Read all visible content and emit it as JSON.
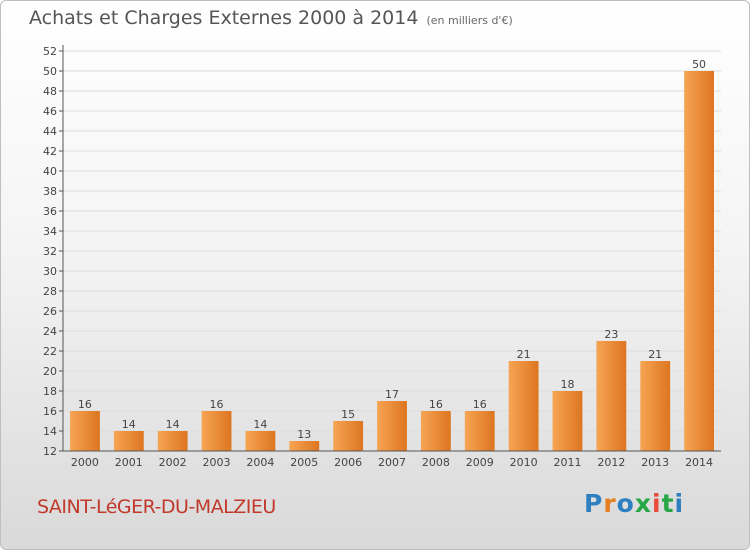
{
  "header": {
    "title": "Achats et Charges Externes 2000 à 2014",
    "unit": "(en milliers d'€)"
  },
  "footer": {
    "place": "SAINT-LéGER-DU-MALZIEU",
    "brand": "Proxiti"
  },
  "colors": {
    "bar_light": "#f6a554",
    "bar_dark": "#dd7520",
    "grid": "#dddddd",
    "place": "#c0392b",
    "brand": [
      "#2e7fc0",
      "#e67e22",
      "#2e7fc0",
      "#27a745",
      "#e74c3c",
      "#27a745",
      "#2e7fc0"
    ]
  },
  "chart_data": {
    "type": "bar",
    "categories": [
      "2000",
      "2001",
      "2002",
      "2003",
      "2004",
      "2005",
      "2006",
      "2007",
      "2008",
      "2009",
      "2010",
      "2011",
      "2012",
      "2013",
      "2014"
    ],
    "values": [
      16,
      14,
      14,
      16,
      14,
      13,
      15,
      17,
      16,
      16,
      21,
      18,
      23,
      21,
      50
    ],
    "data_labels": [
      "16",
      "14",
      "14",
      "16",
      "14",
      "13",
      "15",
      "17",
      "16",
      "16",
      "21",
      "18",
      "23",
      "21",
      "50"
    ],
    "title": "Achats et Charges Externes 2000 à 2014",
    "unit": "(en milliers d'€)",
    "ylim": [
      12,
      52
    ],
    "yticks": [
      "12",
      "14",
      "16",
      "18",
      "20",
      "22",
      "24",
      "26",
      "28",
      "30",
      "32",
      "34",
      "36",
      "38",
      "40",
      "42",
      "44",
      "46",
      "48",
      "50",
      "52"
    ],
    "grid": "horizontal"
  }
}
